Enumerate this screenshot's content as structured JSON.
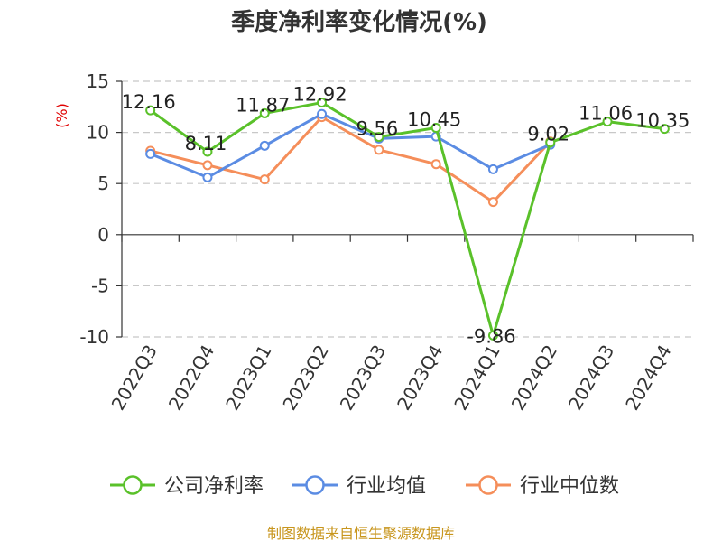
{
  "chart_data": {
    "type": "line",
    "title": "季度净利率变化情况(%)",
    "ylabel": "(%)",
    "categories": [
      "2022Q3",
      "2022Q4",
      "2023Q1",
      "2023Q2",
      "2023Q3",
      "2023Q4",
      "2024Q1",
      "2024Q2",
      "2024Q3",
      "2024Q4"
    ],
    "ylim": [
      -10,
      15
    ],
    "yticks": [
      15,
      10,
      5,
      0,
      -5,
      -10
    ],
    "grid": true,
    "legend_position": "bottom",
    "series": [
      {
        "name": "公司净利率",
        "color": "#5ac12a",
        "values": [
          12.16,
          8.11,
          11.87,
          12.92,
          9.56,
          10.45,
          -9.86,
          9.02,
          11.06,
          10.35
        ],
        "labels": [
          "12.16",
          "8.11",
          "11.87",
          "12.92",
          "9.56",
          "10.45",
          "-9.86",
          "9.02",
          "11.06",
          "10.35"
        ]
      },
      {
        "name": "行业均值",
        "color": "#5b8ce3",
        "values": [
          7.9,
          5.6,
          8.7,
          11.8,
          9.4,
          9.6,
          6.4,
          8.8,
          null,
          null
        ]
      },
      {
        "name": "行业中位数",
        "color": "#f58e5a",
        "values": [
          8.2,
          6.8,
          5.4,
          11.5,
          8.3,
          6.9,
          3.2,
          9.1,
          null,
          null
        ]
      }
    ]
  },
  "footer": {
    "source": "制图数据来自恒生聚源数据库"
  }
}
